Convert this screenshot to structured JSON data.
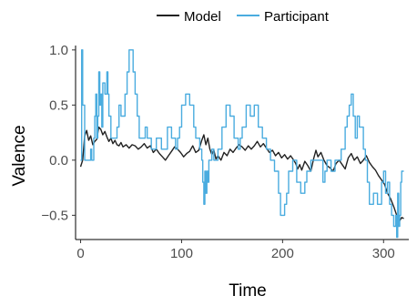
{
  "chart_data": {
    "type": "line",
    "title": "",
    "xlabel": "Time",
    "ylabel": "Valence",
    "xlim": [
      -5,
      325
    ],
    "ylim": [
      -0.72,
      1.04
    ],
    "xticks": [
      0,
      100,
      200,
      300
    ],
    "xtick_labels": [
      "0",
      "100",
      "200",
      "300"
    ],
    "yticks": [
      -0.5,
      0.0,
      0.5,
      1.0
    ],
    "ytick_labels": [
      "−0.5",
      "0.0",
      "0.5",
      "1.0"
    ],
    "grid": false,
    "legend_position": "top-center",
    "series": [
      {
        "name": "Model",
        "color": "#222222",
        "step": false,
        "points": [
          [
            0,
            -0.06
          ],
          [
            2,
            0.0
          ],
          [
            4,
            0.22
          ],
          [
            6,
            0.27
          ],
          [
            8,
            0.18
          ],
          [
            10,
            0.22
          ],
          [
            12,
            0.14
          ],
          [
            14,
            0.17
          ],
          [
            16,
            0.19
          ],
          [
            18,
            0.3
          ],
          [
            20,
            0.28
          ],
          [
            22,
            0.23
          ],
          [
            24,
            0.26
          ],
          [
            26,
            0.21
          ],
          [
            28,
            0.17
          ],
          [
            30,
            0.2
          ],
          [
            32,
            0.15
          ],
          [
            34,
            0.18
          ],
          [
            36,
            0.14
          ],
          [
            38,
            0.13
          ],
          [
            40,
            0.16
          ],
          [
            42,
            0.12
          ],
          [
            45,
            0.14
          ],
          [
            48,
            0.11
          ],
          [
            51,
            0.14
          ],
          [
            54,
            0.13
          ],
          [
            57,
            0.1
          ],
          [
            60,
            0.12
          ],
          [
            63,
            0.15
          ],
          [
            66,
            0.11
          ],
          [
            69,
            0.13
          ],
          [
            72,
            0.07
          ],
          [
            75,
            0.1
          ],
          [
            78,
            0.06
          ],
          [
            81,
            0.03
          ],
          [
            84,
            0.0
          ],
          [
            87,
            0.04
          ],
          [
            90,
            0.08
          ],
          [
            93,
            0.12
          ],
          [
            96,
            0.1
          ],
          [
            99,
            0.07
          ],
          [
            102,
            0.03
          ],
          [
            105,
            0.06
          ],
          [
            108,
            0.08
          ],
          [
            111,
            0.13
          ],
          [
            114,
            0.07
          ],
          [
            117,
            0.09
          ],
          [
            120,
            0.18
          ],
          [
            122,
            0.23
          ],
          [
            124,
            0.14
          ],
          [
            126,
            0.2
          ],
          [
            128,
            0.1
          ],
          [
            130,
            0.05
          ],
          [
            132,
            0.09
          ],
          [
            134,
            0.01
          ],
          [
            136,
            0.04
          ],
          [
            139,
            0.0
          ],
          [
            142,
            0.07
          ],
          [
            145,
            0.04
          ],
          [
            148,
            0.1
          ],
          [
            151,
            0.07
          ],
          [
            154,
            0.11
          ],
          [
            157,
            0.14
          ],
          [
            160,
            0.12
          ],
          [
            163,
            0.09
          ],
          [
            166,
            0.13
          ],
          [
            169,
            0.1
          ],
          [
            172,
            0.13
          ],
          [
            175,
            0.17
          ],
          [
            178,
            0.12
          ],
          [
            181,
            0.15
          ],
          [
            184,
            0.11
          ],
          [
            187,
            0.07
          ],
          [
            190,
            0.09
          ],
          [
            193,
            0.04
          ],
          [
            196,
            0.07
          ],
          [
            199,
            0.02
          ],
          [
            202,
            0.05
          ],
          [
            205,
            0.01
          ],
          [
            208,
            0.04
          ],
          [
            211,
            0.0
          ],
          [
            213,
            -0.03
          ],
          [
            215,
            -0.08
          ],
          [
            217,
            -0.04
          ],
          [
            219,
            -0.09
          ],
          [
            222,
            -0.01
          ],
          [
            225,
            -0.05
          ],
          [
            228,
            -0.1
          ],
          [
            231,
            0.02
          ],
          [
            233,
            0.09
          ],
          [
            235,
            0.03
          ],
          [
            238,
            0.07
          ],
          [
            241,
            0.0
          ],
          [
            244,
            -0.05
          ],
          [
            247,
            -0.07
          ],
          [
            250,
            -0.1
          ],
          [
            253,
            -0.03
          ],
          [
            256,
            0.0
          ],
          [
            259,
            -0.04
          ],
          [
            262,
            -0.08
          ],
          [
            265,
            0.02
          ],
          [
            268,
            0.06
          ],
          [
            271,
            0.0
          ],
          [
            274,
            0.03
          ],
          [
            277,
            -0.03
          ],
          [
            280,
            0.0
          ],
          [
            283,
            0.04
          ],
          [
            286,
            -0.02
          ],
          [
            289,
            -0.06
          ],
          [
            292,
            -0.09
          ],
          [
            295,
            -0.14
          ],
          [
            298,
            -0.18
          ],
          [
            301,
            -0.22
          ],
          [
            304,
            -0.3
          ],
          [
            307,
            -0.35
          ],
          [
            310,
            -0.42
          ],
          [
            313,
            -0.5
          ],
          [
            316,
            -0.55
          ],
          [
            318,
            -0.52
          ],
          [
            320,
            -0.53
          ]
        ]
      },
      {
        "name": "Participant",
        "color": "#4aacdf",
        "step": true,
        "points": [
          [
            0,
            0.0
          ],
          [
            1,
            1.0
          ],
          [
            2,
            0.5
          ],
          [
            4,
            0.0
          ],
          [
            10,
            0.1
          ],
          [
            11,
            0.0
          ],
          [
            13,
            0.2
          ],
          [
            14,
            0.4
          ],
          [
            15,
            0.6
          ],
          [
            16,
            0.2
          ],
          [
            17,
            0.4
          ],
          [
            18,
            0.8
          ],
          [
            19,
            0.5
          ],
          [
            20,
            0.6
          ],
          [
            21,
            0.3
          ],
          [
            22,
            0.7
          ],
          [
            24,
            0.6
          ],
          [
            26,
            0.8
          ],
          [
            27,
            0.6
          ],
          [
            28,
            0.4
          ],
          [
            30,
            0.2
          ],
          [
            36,
            0.3
          ],
          [
            38,
            0.5
          ],
          [
            40,
            0.4
          ],
          [
            44,
            0.6
          ],
          [
            46,
            0.8
          ],
          [
            48,
            1.0
          ],
          [
            52,
            0.8
          ],
          [
            54,
            0.6
          ],
          [
            56,
            0.4
          ],
          [
            58,
            0.2
          ],
          [
            64,
            0.3
          ],
          [
            66,
            0.2
          ],
          [
            70,
            0.1
          ],
          [
            75,
            0.2
          ],
          [
            80,
            0.1
          ],
          [
            86,
            0.3
          ],
          [
            90,
            0.2
          ],
          [
            94,
            0.1
          ],
          [
            96,
            0.2
          ],
          [
            98,
            0.3
          ],
          [
            100,
            0.5
          ],
          [
            104,
            0.6
          ],
          [
            108,
            0.5
          ],
          [
            112,
            0.3
          ],
          [
            114,
            0.2
          ],
          [
            118,
            0.1
          ],
          [
            120,
            0.0
          ],
          [
            121,
            -0.2
          ],
          [
            122,
            -0.4
          ],
          [
            123,
            -0.1
          ],
          [
            124,
            -0.3
          ],
          [
            125,
            -0.1
          ],
          [
            126,
            -0.2
          ],
          [
            127,
            0.0
          ],
          [
            130,
            0.1
          ],
          [
            132,
            0.0
          ],
          [
            136,
            0.1
          ],
          [
            140,
            0.3
          ],
          [
            144,
            0.5
          ],
          [
            148,
            0.4
          ],
          [
            152,
            0.2
          ],
          [
            156,
            0.1
          ],
          [
            158,
            0.2
          ],
          [
            160,
            0.3
          ],
          [
            164,
            0.5
          ],
          [
            168,
            0.4
          ],
          [
            172,
            0.5
          ],
          [
            176,
            0.3
          ],
          [
            180,
            0.2
          ],
          [
            184,
            0.1
          ],
          [
            188,
            0.0
          ],
          [
            192,
            -0.1
          ],
          [
            196,
            -0.3
          ],
          [
            198,
            -0.5
          ],
          [
            202,
            -0.4
          ],
          [
            204,
            -0.3
          ],
          [
            206,
            -0.1
          ],
          [
            210,
            0.0
          ],
          [
            214,
            -0.2
          ],
          [
            218,
            -0.3
          ],
          [
            222,
            -0.2
          ],
          [
            224,
            -0.1
          ],
          [
            228,
            0.0
          ],
          [
            240,
            -0.2
          ],
          [
            242,
            -0.1
          ],
          [
            244,
            0.0
          ],
          [
            248,
            -0.1
          ],
          [
            252,
            0.0
          ],
          [
            258,
            0.1
          ],
          [
            262,
            0.3
          ],
          [
            264,
            0.4
          ],
          [
            266,
            0.5
          ],
          [
            268,
            0.6
          ],
          [
            270,
            0.4
          ],
          [
            272,
            0.2
          ],
          [
            274,
            0.4
          ],
          [
            276,
            0.3
          ],
          [
            280,
            0.1
          ],
          [
            282,
            0.0
          ],
          [
            284,
            -0.2
          ],
          [
            286,
            -0.4
          ],
          [
            290,
            -0.3
          ],
          [
            294,
            -0.4
          ],
          [
            298,
            -0.2
          ],
          [
            300,
            -0.1
          ],
          [
            302,
            -0.3
          ],
          [
            304,
            -0.2
          ],
          [
            306,
            -0.4
          ],
          [
            308,
            -0.5
          ],
          [
            310,
            -0.6
          ],
          [
            312,
            -0.5
          ],
          [
            313,
            -0.7
          ],
          [
            314,
            -0.3
          ],
          [
            315,
            -0.6
          ],
          [
            316,
            -0.5
          ],
          [
            317,
            -0.2
          ],
          [
            318,
            -0.1
          ],
          [
            320,
            -0.1
          ]
        ]
      }
    ]
  }
}
